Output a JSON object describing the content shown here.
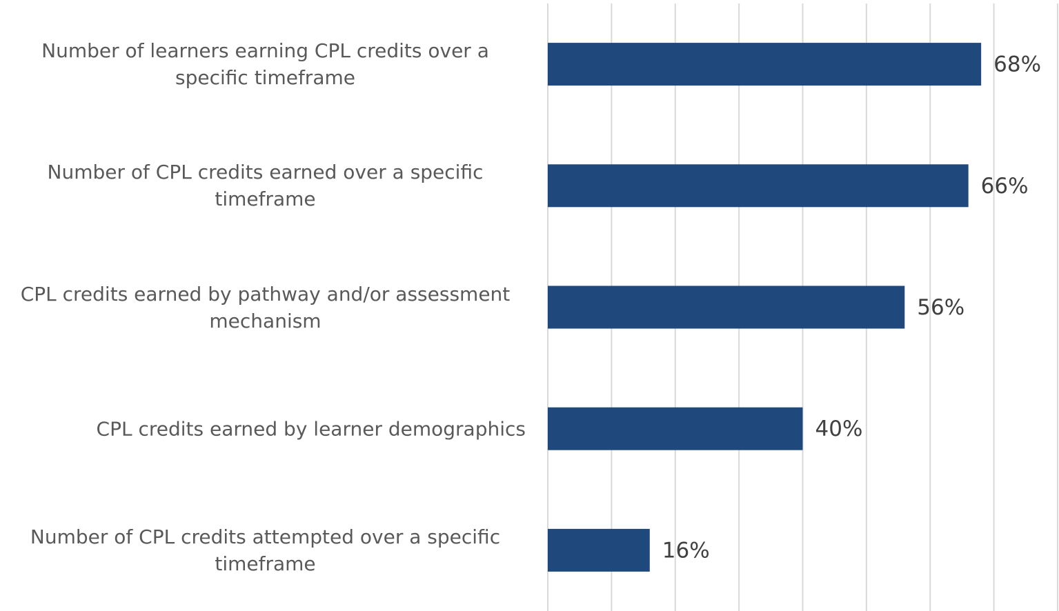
{
  "chart_data": {
    "type": "barh",
    "categories": [
      "Number of learners earning CPL credits over a specific timeframe",
      "Number of CPL credits earned over a specific timeframe",
      "CPL credits earned by pathway and/or assessment mechanism",
      "CPL credits earned by learner demographics",
      "Number of CPL credits attempted over a specific timeframe"
    ],
    "values": [
      68,
      66,
      56,
      40,
      16
    ],
    "value_labels": [
      "68%",
      "66%",
      "56%",
      "40%",
      "16%"
    ],
    "color": "#1f497d",
    "xlim": [
      0,
      80
    ],
    "xticks": [
      0,
      10,
      20,
      30,
      40,
      50,
      60,
      70,
      80
    ],
    "grid": true
  }
}
